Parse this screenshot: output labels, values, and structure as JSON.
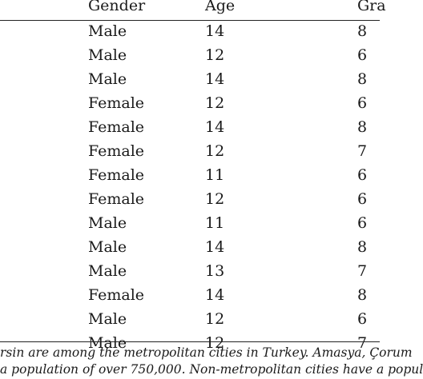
{
  "table": {
    "headers": {
      "gender": "Gender",
      "age": "Age",
      "grade": "Gra"
    },
    "rows": [
      {
        "gender": "Male",
        "age": "14",
        "grade": "8"
      },
      {
        "gender": "Male",
        "age": "12",
        "grade": "6"
      },
      {
        "gender": "Male",
        "age": "14",
        "grade": "8"
      },
      {
        "gender": "Female",
        "age": "12",
        "grade": "6"
      },
      {
        "gender": "Female",
        "age": "14",
        "grade": "8"
      },
      {
        "gender": "Female",
        "age": "12",
        "grade": "7"
      },
      {
        "gender": "Female",
        "age": "11",
        "grade": "6"
      },
      {
        "gender": "Female",
        "age": "12",
        "grade": "6"
      },
      {
        "gender": "Male",
        "age": "11",
        "grade": "6"
      },
      {
        "gender": "Male",
        "age": "14",
        "grade": "8"
      },
      {
        "gender": "Male",
        "age": "13",
        "grade": "7"
      },
      {
        "gender": "Female",
        "age": "14",
        "grade": "8"
      },
      {
        "gender": "Male",
        "age": "12",
        "grade": "6"
      },
      {
        "gender": "Male",
        "age": "12",
        "grade": "7"
      }
    ]
  },
  "footnote": {
    "line1": "rsin are among the metropolitan cities in Turkey. Amasya, Çorum",
    "line2": "a population of over 750,000. Non-metropolitan cities have a popul"
  }
}
